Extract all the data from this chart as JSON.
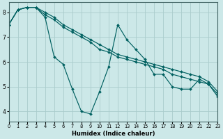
{
  "xlabel": "Humidex (Indice chaleur)",
  "bg_color": "#cce8e8",
  "grid_color": "#aacccc",
  "line_color": "#006060",
  "series": [
    {
      "x": [
        0,
        1,
        2,
        3,
        4,
        5,
        6,
        7,
        8,
        9,
        10,
        11,
        12,
        13,
        14,
        15,
        16,
        17,
        18,
        19,
        20,
        21,
        22,
        23
      ],
      "y": [
        7.5,
        8.1,
        8.2,
        8.2,
        7.8,
        6.2,
        5.9,
        4.9,
        4.0,
        3.9,
        4.8,
        5.8,
        7.5,
        6.9,
        6.5,
        6.1,
        5.5,
        5.5,
        5.0,
        4.9,
        4.9,
        5.3,
        5.1,
        4.6
      ]
    },
    {
      "x": [
        0,
        1,
        2,
        3,
        4,
        5,
        6,
        7,
        8,
        9,
        10,
        11,
        12,
        13,
        14,
        15,
        16,
        17,
        18,
        19,
        20,
        21,
        22,
        23
      ],
      "y": [
        7.5,
        8.1,
        8.2,
        8.2,
        7.9,
        7.7,
        7.4,
        7.2,
        7.0,
        6.8,
        6.5,
        6.4,
        6.2,
        6.1,
        6.0,
        5.9,
        5.8,
        5.7,
        5.5,
        5.4,
        5.3,
        5.2,
        5.1,
        4.7
      ]
    },
    {
      "x": [
        0,
        1,
        2,
        3,
        4,
        5,
        6,
        7,
        8,
        9,
        10,
        11,
        12,
        13,
        14,
        15,
        16,
        17,
        18,
        19,
        20,
        21,
        22,
        23
      ],
      "y": [
        7.5,
        8.1,
        8.2,
        8.2,
        8.0,
        7.8,
        7.5,
        7.3,
        7.1,
        6.9,
        6.7,
        6.5,
        6.3,
        6.2,
        6.1,
        6.0,
        5.9,
        5.8,
        5.7,
        5.6,
        5.5,
        5.4,
        5.2,
        4.8
      ]
    }
  ],
  "xlim": [
    0,
    23
  ],
  "ylim": [
    3.6,
    8.4
  ],
  "yticks": [
    4,
    5,
    6,
    7,
    8
  ],
  "xticks": [
    0,
    1,
    2,
    3,
    4,
    5,
    6,
    7,
    8,
    9,
    10,
    11,
    12,
    13,
    14,
    15,
    16,
    17,
    18,
    19,
    20,
    21,
    22,
    23
  ]
}
